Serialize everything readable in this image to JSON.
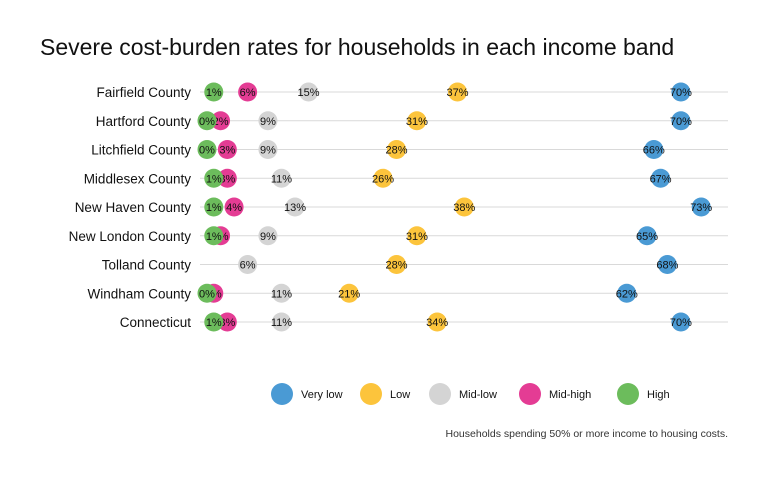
{
  "chart_data": {
    "type": "scatter",
    "title": "Severe cost-burden rates for households in each income band",
    "caption": "Households spending 50% or more income to housing costs.",
    "categories": [
      "Fairfield County",
      "Hartford County",
      "Litchfield County",
      "Middlesex County",
      "New Haven County",
      "New London County",
      "Tolland County",
      "Windham County",
      "Connecticut"
    ],
    "series": [
      {
        "name": "Very low",
        "color": "#4a9ad4",
        "values": [
          70,
          70,
          66,
          67,
          73,
          65,
          68,
          62,
          70
        ],
        "labels": [
          "70%",
          "70%",
          "66%",
          "67%",
          "73%",
          "65%",
          "68%",
          "62%",
          "70%"
        ]
      },
      {
        "name": "Low",
        "color": "#fcc43c",
        "values": [
          37,
          31,
          28,
          26,
          38,
          31,
          28,
          21,
          34
        ],
        "labels": [
          "37%",
          "31%",
          "28%",
          "26%",
          "38%",
          "31%",
          "28%",
          "21%",
          "34%"
        ]
      },
      {
        "name": "Mid-low",
        "color": "#d4d4d4",
        "values": [
          15,
          9,
          9,
          11,
          13,
          9,
          6,
          11,
          11
        ],
        "labels": [
          "15%",
          "9%",
          "9%",
          "11%",
          "13%",
          "9%",
          "6%",
          "11%",
          "11%"
        ]
      },
      {
        "name": "Mid-high",
        "color": "#e43c94",
        "values": [
          6,
          2,
          3,
          3,
          4,
          2,
          null,
          1,
          3
        ],
        "labels": [
          "6%",
          "2%",
          "3%",
          "3%",
          "4%",
          "2%",
          null,
          "1%",
          "3%"
        ]
      },
      {
        "name": "High",
        "color": "#6cbc5c",
        "values": [
          1,
          0,
          0,
          1,
          1,
          1,
          null,
          0,
          1
        ],
        "labels": [
          "1%",
          "0%",
          "0%",
          "1%",
          "1%",
          "1%",
          null,
          "0%",
          "1%"
        ]
      }
    ],
    "xlim": [
      0,
      80
    ],
    "grid": true,
    "legend_position": "bottom"
  }
}
